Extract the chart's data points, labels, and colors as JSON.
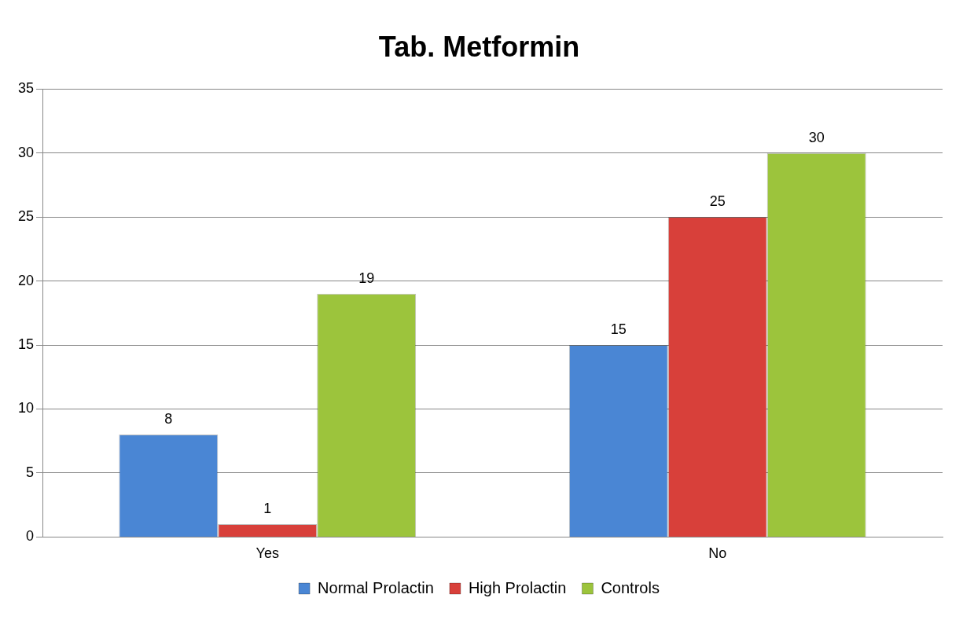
{
  "chart_data": {
    "type": "bar",
    "title": "Tab. Metformin",
    "categories": [
      "Yes",
      "No"
    ],
    "series": [
      {
        "name": "Normal Prolactin",
        "color": "#4a86d4",
        "values": [
          8,
          15
        ]
      },
      {
        "name": "High Prolactin",
        "color": "#d8403a",
        "values": [
          1,
          25
        ]
      },
      {
        "name": "Controls",
        "color": "#9cc43c",
        "values": [
          19,
          30
        ]
      }
    ],
    "ylim": [
      0,
      35
    ],
    "yticks": [
      0,
      5,
      10,
      15,
      20,
      25,
      30,
      35
    ],
    "grid": "y",
    "legend": "bottom",
    "data_labels": true
  }
}
